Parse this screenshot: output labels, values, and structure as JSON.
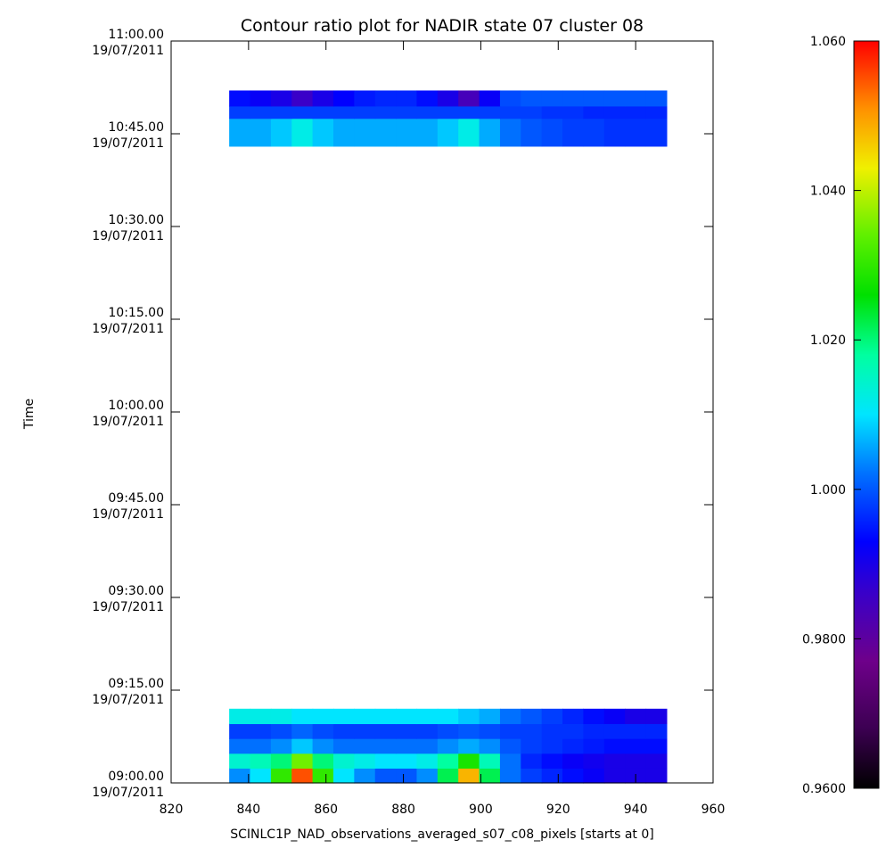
{
  "chart_data": [
    {
      "type": "heatmap",
      "title": "Contour ratio plot for NADIR state 07 cluster 08",
      "xlabel": "SCINLC1P_NAD_observations_averaged_s07_c08_pixels [starts at 0]",
      "ylabel": "Time",
      "xlim": [
        820,
        960
      ],
      "x_ticks": [
        "820",
        "840",
        "860",
        "880",
        "900",
        "920",
        "940",
        "960"
      ],
      "y_ticks": [
        {
          "time": "09:00.00",
          "date": "19/07/2011"
        },
        {
          "time": "09:15.00",
          "date": "19/07/2011"
        },
        {
          "time": "09:30.00",
          "date": "19/07/2011"
        },
        {
          "time": "09:45.00",
          "date": "19/07/2011"
        },
        {
          "time": "10:00.00",
          "date": "19/07/2011"
        },
        {
          "time": "10:15.00",
          "date": "19/07/2011"
        },
        {
          "time": "10:30.00",
          "date": "19/07/2011"
        },
        {
          "time": "10:45.00",
          "date": "19/07/2011"
        },
        {
          "time": "11:00.00",
          "date": "19/07/2011"
        }
      ],
      "ylim_minutes_after_0900": [
        0,
        120
      ],
      "x_range_data": [
        835,
        948
      ],
      "bands": [
        {
          "name": "09:00–09:12 block",
          "rows": [
            {
              "t0": 0.0,
              "t1": 2.4,
              "values": [
                1.004,
                1.01,
                1.03,
                1.055,
                1.03,
                1.01,
                1.004,
                1.0,
                1.0,
                1.004,
                1.022,
                1.048,
                1.022,
                1.002,
                0.998,
                0.996,
                0.994,
                0.992,
                0.99,
                0.99,
                0.99
              ]
            },
            {
              "t0": 2.4,
              "t1": 4.8,
              "values": [
                1.014,
                1.016,
                1.02,
                1.035,
                1.02,
                1.014,
                1.012,
                1.01,
                1.01,
                1.012,
                1.018,
                1.028,
                1.016,
                1.002,
                0.996,
                0.994,
                0.992,
                0.991,
                0.99,
                0.99,
                0.99
              ]
            },
            {
              "t0": 4.8,
              "t1": 7.2,
              "values": [
                1.002,
                1.002,
                1.004,
                1.008,
                1.004,
                1.002,
                1.002,
                1.002,
                1.002,
                1.002,
                1.004,
                1.006,
                1.004,
                1.0,
                0.998,
                0.997,
                0.996,
                0.995,
                0.994,
                0.994,
                0.994
              ]
            },
            {
              "t0": 7.2,
              "t1": 9.6,
              "values": [
                0.998,
                0.998,
                0.999,
                1.001,
                0.999,
                0.998,
                0.998,
                0.998,
                0.998,
                0.998,
                0.999,
                1.0,
                0.999,
                0.998,
                0.998,
                0.997,
                0.997,
                0.996,
                0.996,
                0.996,
                0.996
              ]
            },
            {
              "t0": 9.6,
              "t1": 12.0,
              "values": [
                1.012,
                1.012,
                1.012,
                1.01,
                1.01,
                1.01,
                1.01,
                1.01,
                1.01,
                1.01,
                1.01,
                1.008,
                1.006,
                1.002,
                1.0,
                0.998,
                0.996,
                0.994,
                0.992,
                0.99,
                0.99
              ]
            }
          ]
        },
        {
          "name": "10:43–10:52 block",
          "rows": [
            {
              "t0": 103.0,
              "t1": 107.5,
              "values": [
                1.006,
                1.006,
                1.008,
                1.012,
                1.008,
                1.006,
                1.006,
                1.006,
                1.006,
                1.006,
                1.008,
                1.012,
                1.006,
                1.002,
                1.0,
                0.999,
                0.998,
                0.998,
                0.997,
                0.997,
                0.997
              ]
            },
            {
              "t0": 107.5,
              "t1": 109.5,
              "values": [
                0.998,
                0.998,
                0.998,
                0.998,
                0.998,
                0.998,
                0.998,
                0.998,
                0.998,
                0.998,
                0.998,
                0.998,
                0.998,
                0.998,
                0.998,
                0.997,
                0.997,
                0.996,
                0.996,
                0.996,
                0.996
              ]
            },
            {
              "t0": 109.5,
              "t1": 112.0,
              "values": [
                0.994,
                0.992,
                0.99,
                0.986,
                0.99,
                0.993,
                0.995,
                0.996,
                0.996,
                0.994,
                0.99,
                0.984,
                0.992,
                0.999,
                1.0,
                1.0,
                1.0,
                1.0,
                1.0,
                1.0,
                1.0
              ]
            }
          ]
        }
      ]
    },
    {
      "type": "colorbar",
      "ticks": [
        "0.9600",
        "0.9800",
        "1.000",
        "1.020",
        "1.040",
        "1.060"
      ],
      "range": [
        0.96,
        1.06
      ]
    }
  ]
}
